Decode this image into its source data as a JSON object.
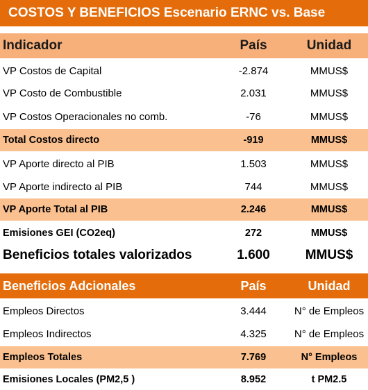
{
  "title": "COSTOS Y BENEFICIOS Escenario ERNC vs. Base",
  "table1": {
    "headers": [
      "Indicador",
      "País",
      "Unidad"
    ],
    "rows": [
      {
        "indicador": "VP Costos de Capital",
        "pais": "-2.874",
        "unidad": "MMUS$"
      },
      {
        "indicador": "VP Costo de Combustible",
        "pais": "2.031",
        "unidad": "MMUS$"
      },
      {
        "indicador": "VP Costos Operacionales  no comb.",
        "pais": "-76",
        "unidad": "MMUS$"
      },
      {
        "indicador": "Total Costos directo",
        "pais": "-919",
        "unidad": "MMUS$"
      },
      {
        "indicador": "VP Aporte directo al PIB",
        "pais": "1.503",
        "unidad": "MMUS$"
      },
      {
        "indicador": "VP Aporte indirecto al PIB",
        "pais": "744",
        "unidad": "MMUS$"
      },
      {
        "indicador": "VP Aporte Total al PIB",
        "pais": "2.246",
        "unidad": "MMUS$"
      },
      {
        "indicador": "Emisiones GEI (CO2eq)",
        "pais": "272",
        "unidad": "MMUS$"
      },
      {
        "indicador": "Beneficios totales valorizados",
        "pais": "1.600",
        "unidad": "MMUS$"
      }
    ]
  },
  "table2": {
    "headers": [
      "Beneficios Adcionales",
      "País",
      "Unidad"
    ],
    "rows": [
      {
        "indicador": "Empleos Directos",
        "pais": "3.444",
        "unidad": "N° de Empleos"
      },
      {
        "indicador": "Empleos Indirectos",
        "pais": "4.325",
        "unidad": "N° de Empleos"
      },
      {
        "indicador": "Empleos Totales",
        "pais": "7.769",
        "unidad": "N° Empleos"
      },
      {
        "indicador": "Emisiones Locales  (PM2,5 )",
        "pais": "8.952",
        "unidad": "t PM2.5"
      }
    ]
  }
}
